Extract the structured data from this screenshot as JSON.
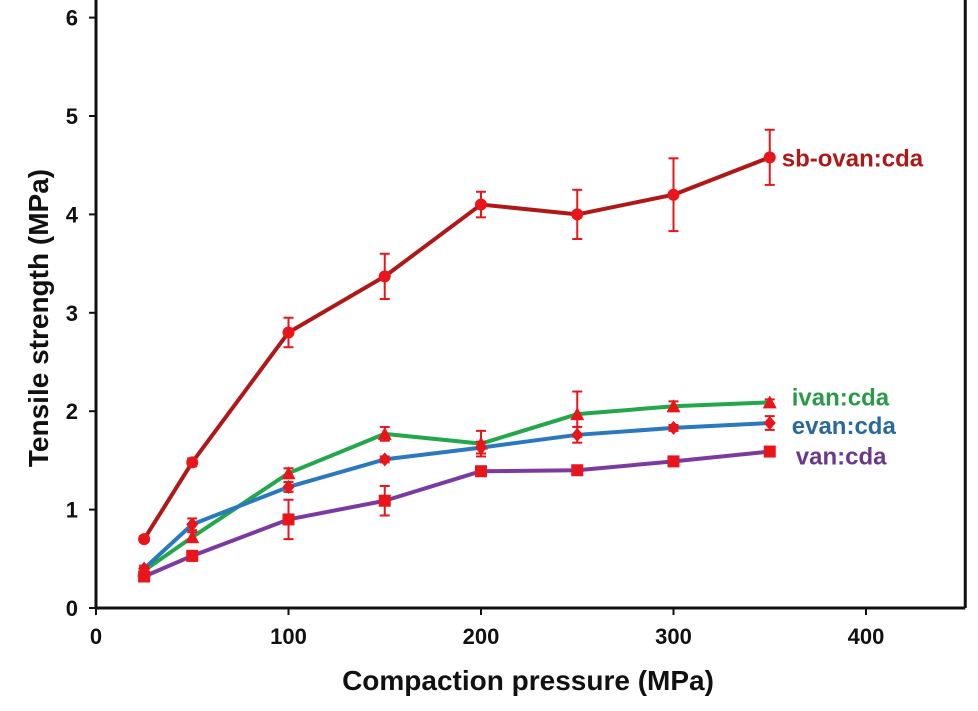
{
  "chart_data": {
    "type": "line",
    "title": "",
    "xlabel": "Compaction pressure (MPa)",
    "ylabel": "Tensile strength (MPa)",
    "xlim": [
      0,
      450
    ],
    "ylim": [
      0,
      6
    ],
    "xticks": [
      0,
      100,
      200,
      300,
      400
    ],
    "yticks": [
      0,
      1,
      2,
      3,
      4,
      5,
      6
    ],
    "grid": false,
    "legend": "inline labels at right end of lines",
    "marker_color": "#e8151b",
    "x": [
      25,
      50,
      100,
      150,
      200,
      250,
      300,
      350
    ],
    "series": [
      {
        "name": "sb-ovan:cda",
        "color": "#b01818",
        "label_color": "#b01818",
        "marker": "circle",
        "values": [
          0.7,
          1.48,
          2.8,
          3.37,
          4.1,
          4.0,
          4.2,
          4.58
        ],
        "errors": [
          0.03,
          0.04,
          0.15,
          0.23,
          0.13,
          0.25,
          0.37,
          0.28
        ]
      },
      {
        "name": "ivan:cda",
        "color": "#22a84a",
        "label_color": "#2a9a4a",
        "marker": "triangle",
        "values": [
          0.38,
          0.72,
          1.37,
          1.77,
          1.67,
          1.97,
          2.05,
          2.09
        ],
        "errors": [
          0.03,
          0.05,
          0.05,
          0.07,
          0.13,
          0.23,
          0.05,
          0.03
        ]
      },
      {
        "name": "evan:cda",
        "color": "#2a78c0",
        "label_color": "#2a6a9a",
        "marker": "diamond",
        "values": [
          0.4,
          0.85,
          1.23,
          1.51,
          1.63,
          1.76,
          1.83,
          1.88
        ],
        "errors": [
          0.03,
          0.06,
          0.05,
          0.03,
          0.06,
          0.08,
          0.03,
          0.07
        ]
      },
      {
        "name": "van:cda",
        "color": "#7a3aa0",
        "label_color": "#6a3a8a",
        "marker": "square",
        "values": [
          0.32,
          0.53,
          0.9,
          1.09,
          1.39,
          1.4,
          1.49,
          1.59
        ],
        "errors": [
          0.03,
          0.05,
          0.2,
          0.15,
          0.04,
          0.04,
          0.03,
          0.03
        ]
      }
    ]
  }
}
